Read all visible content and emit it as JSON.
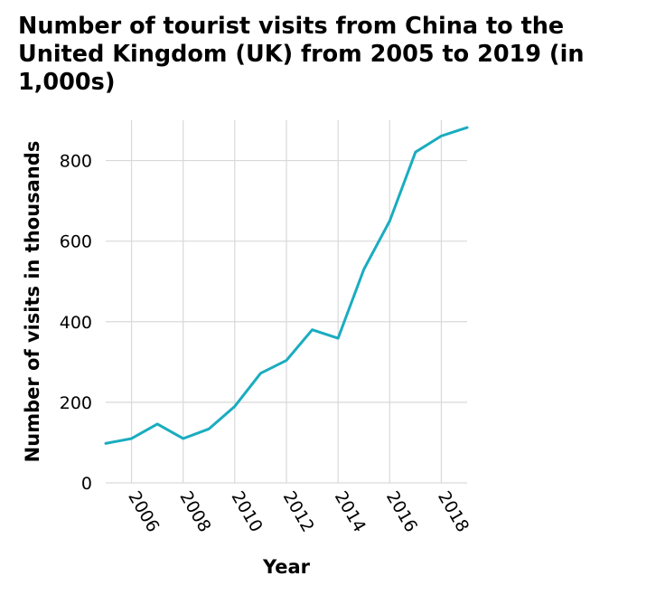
{
  "chart_data": {
    "type": "line",
    "title": "Number of tourist visits from China to the United Kingdom (UK) from 2005 to 2019 (in 1,000s)",
    "xlabel": "Year",
    "ylabel": "Number of visits in thousands",
    "x": [
      2005,
      2006,
      2007,
      2008,
      2009,
      2010,
      2011,
      2012,
      2013,
      2014,
      2015,
      2016,
      2017,
      2018,
      2019
    ],
    "series": [
      {
        "values": [
          98,
          110,
          146,
          110,
          134,
          190,
          272,
          304,
          380,
          359,
          530,
          650,
          821,
          861,
          882
        ],
        "color": "#1aacc0"
      }
    ],
    "xticks": [
      2006,
      2008,
      2010,
      2012,
      2014,
      2016,
      2018
    ],
    "xtick_labels": [
      "2006",
      "2008",
      "2010",
      "2012",
      "2014",
      "2016",
      "2018"
    ],
    "yticks": [
      0,
      200,
      400,
      600,
      800
    ],
    "ytick_labels": [
      "0",
      "200",
      "400",
      "600",
      "800"
    ],
    "xlim": [
      2005,
      2019
    ],
    "ylim": [
      0,
      900
    ],
    "grid": true,
    "legend": "none"
  }
}
